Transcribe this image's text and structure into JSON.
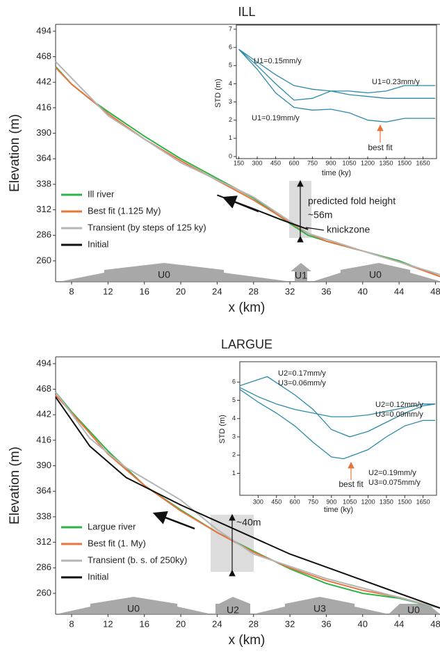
{
  "chart_data": [
    {
      "type": "line",
      "title": "ILL",
      "x_label": "x (km)",
      "y_label": "Elevation (m)",
      "xlim": [
        6.24,
        48.5
      ],
      "xticks": [
        8,
        12,
        16,
        20,
        24,
        28,
        32,
        36,
        40,
        44,
        48
      ],
      "ylim": [
        238.7,
        501
      ],
      "yticks": [
        260,
        286,
        312,
        338,
        364,
        390,
        416,
        442,
        468,
        494
      ],
      "series": [
        {
          "name": "Ill river",
          "color": "#2db34a",
          "x": [
            6.24,
            8,
            10,
            12,
            16,
            20,
            24,
            28,
            32,
            34,
            36,
            40,
            44,
            48.5
          ],
          "values": [
            458,
            440,
            425,
            412,
            387,
            364,
            344,
            324,
            298,
            286,
            280,
            270,
            260,
            244
          ]
        },
        {
          "name": "Best fit (1.125 My)",
          "color": "#e8743b",
          "x": [
            6.24,
            8,
            12,
            16,
            20,
            24,
            28,
            32,
            34,
            36,
            40,
            44,
            48.5
          ],
          "values": [
            457,
            440,
            410,
            384,
            362,
            342,
            322,
            299,
            288,
            280,
            270,
            259,
            244
          ]
        },
        {
          "name": "Transient (by steps of 125 ky)",
          "color": "#b5b5b5",
          "x": [
            6.24,
            12,
            20,
            28,
            34,
            40,
            48.5
          ],
          "values": [
            463,
            408,
            360,
            325,
            288,
            270,
            246
          ]
        },
        {
          "name": "Initial",
          "color": "#111111",
          "x": [
            24,
            28,
            31,
            34
          ],
          "values": [
            327,
            313,
            302,
            292
          ]
        }
      ],
      "annotations": [
        "predicted fold height",
        "~56m",
        "knickzone",
        "U0",
        "U1",
        "U0"
      ]
    },
    {
      "type": "line",
      "x_label": "time (ky)",
      "y_label": "STD (m)",
      "xlim": [
        130,
        1760
      ],
      "xticks": [
        150,
        300,
        450,
        600,
        750,
        900,
        1050,
        1200,
        1350,
        1500,
        1650
      ],
      "ylim": [
        0,
        7
      ],
      "yticks": [
        0,
        1,
        2,
        3,
        4,
        5,
        6,
        7
      ],
      "series": [
        {
          "name": "U1=0.15mm/y",
          "color": "#2b8aa8",
          "x": [
            150,
            300,
            450,
            600,
            750,
            900,
            1050,
            1200,
            1350,
            1500,
            1650,
            1750
          ],
          "values": [
            5.9,
            5.2,
            4.5,
            3.9,
            3.7,
            3.6,
            3.6,
            3.5,
            3.6,
            3.9,
            3.9,
            3.9
          ]
        },
        {
          "name": "U1=0.23mm/y",
          "color": "#2b8aa8",
          "x": [
            150,
            300,
            450,
            600,
            750,
            900,
            1050,
            1200,
            1350,
            1500,
            1650,
            1750
          ],
          "values": [
            5.9,
            5.0,
            4.0,
            3.1,
            3.2,
            3.6,
            3.4,
            3.3,
            3.2,
            3.2,
            3.2,
            3.2
          ]
        },
        {
          "name": "U1=0.19mm/y",
          "color": "#2b8aa8",
          "x": [
            150,
            300,
            450,
            600,
            750,
            900,
            1050,
            1200,
            1350,
            1500,
            1650,
            1750
          ],
          "values": [
            5.9,
            4.8,
            3.5,
            2.7,
            2.55,
            2.6,
            2.4,
            2.0,
            1.9,
            2.1,
            2.1,
            2.1
          ]
        }
      ],
      "annotations": [
        "best fit"
      ]
    },
    {
      "type": "line",
      "title": "LARGUE",
      "x_label": "x (km)",
      "y_label": "Elevation (m)",
      "xlim": [
        6.24,
        48.5
      ],
      "xticks": [
        8,
        12,
        16,
        20,
        24,
        28,
        32,
        36,
        40,
        44,
        48
      ],
      "ylim": [
        238.7,
        501
      ],
      "yticks": [
        260,
        286,
        312,
        338,
        364,
        390,
        416,
        442,
        468,
        494
      ],
      "series": [
        {
          "name": "Largue river",
          "color": "#2db34a",
          "x": [
            6.24,
            8,
            10,
            12,
            16,
            20,
            24,
            28,
            32,
            36,
            40,
            44,
            48.5
          ],
          "values": [
            465,
            445,
            425,
            405,
            370,
            345,
            322,
            303,
            285,
            270,
            260,
            255,
            245
          ]
        },
        {
          "name": "Best fit (1. My)",
          "color": "#e8743b",
          "x": [
            6.24,
            8,
            12,
            16,
            20,
            24,
            28,
            32,
            36,
            40,
            44,
            48.5
          ],
          "values": [
            462,
            444,
            402,
            370,
            344,
            322,
            302,
            286,
            273,
            263,
            256,
            245
          ]
        },
        {
          "name": "Transient (b. s. of 250ky)",
          "color": "#b5b5b5",
          "x": [
            6.24,
            10,
            14,
            20,
            24,
            28,
            36,
            48.5
          ],
          "values": [
            465,
            418,
            388,
            355,
            325,
            300,
            275,
            245
          ]
        },
        {
          "name": "Initial",
          "color": "#111111",
          "x": [
            6.24,
            10,
            14,
            20,
            26,
            32,
            38,
            44,
            48.5
          ],
          "values": [
            460,
            410,
            378,
            350,
            325,
            300,
            280,
            260,
            245
          ]
        }
      ],
      "annotations": [
        "~40m",
        "U0",
        "U2",
        "U3",
        "U0"
      ]
    },
    {
      "type": "line",
      "x_label": "time (ky)",
      "y_label": "STD (m)",
      "xlim": [
        150,
        1760
      ],
      "xticks": [
        300,
        450,
        600,
        750,
        900,
        1050,
        1200,
        1350,
        1500,
        1650
      ],
      "ylim": [
        -0.2,
        7
      ],
      "yticks": [
        1,
        2,
        3,
        4,
        5,
        6
      ],
      "series": [
        {
          "name": [
            "U2=0.17mm/y",
            "U3=0.06mm/y"
          ],
          "color": "#2b8aa8",
          "x": [
            150,
            375,
            600,
            750,
            900,
            1050,
            1200,
            1350,
            1500,
            1650,
            1750
          ],
          "values": [
            5.8,
            6.3,
            5.3,
            4.5,
            3.4,
            3.0,
            3.3,
            3.8,
            4.3,
            4.7,
            4.8
          ]
        },
        {
          "name": [
            "U2=0.12mm/y",
            "U3=0.09mm/y"
          ],
          "color": "#2b8aa8",
          "x": [
            150,
            300,
            450,
            600,
            750,
            900,
            1050,
            1200,
            1350,
            1500,
            1650,
            1750
          ],
          "values": [
            5.7,
            5.2,
            4.8,
            4.5,
            4.3,
            4.1,
            4.1,
            4.2,
            4.4,
            4.6,
            4.8,
            4.8
          ]
        },
        {
          "name": [
            "U2=0.19mm/y",
            "U3=0.075mm/y"
          ],
          "color": "#2b8aa8",
          "x": [
            150,
            300,
            450,
            600,
            750,
            900,
            1000,
            1200,
            1350,
            1500,
            1650,
            1750
          ],
          "values": [
            5.6,
            4.9,
            4.3,
            3.6,
            2.7,
            1.9,
            1.8,
            2.3,
            3.0,
            3.6,
            3.9,
            3.9
          ]
        }
      ],
      "annotations": [
        "best fit"
      ]
    }
  ]
}
